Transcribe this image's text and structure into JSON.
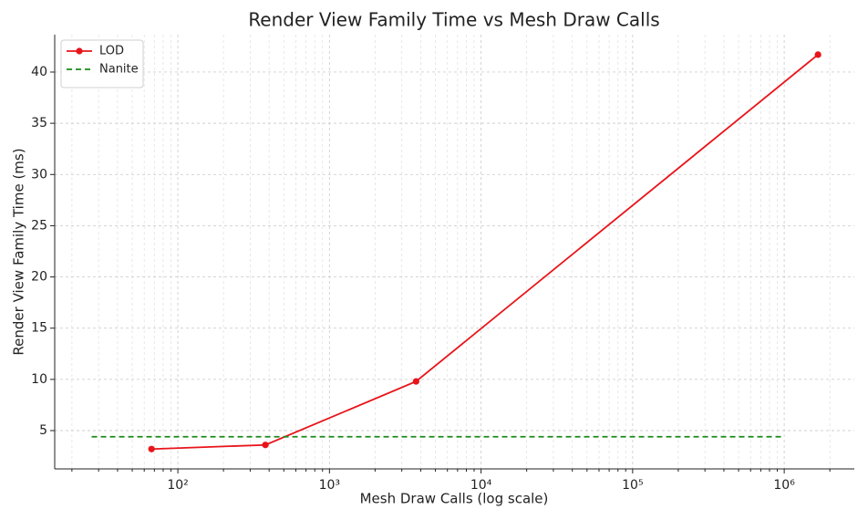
{
  "chart_data": {
    "type": "line",
    "title": "Render View Family Time vs Mesh Draw Calls",
    "xlabel": "Mesh Draw Calls (log scale)",
    "ylabel": "Render View Family Time (ms)",
    "xscale": "log",
    "xlim": [
      15.4,
      2900000
    ],
    "ylim": [
      1.26,
      43.65
    ],
    "xticks": [
      {
        "value": 100,
        "label": "10²"
      },
      {
        "value": 1000,
        "label": "10³"
      },
      {
        "value": 10000,
        "label": "10⁴"
      },
      {
        "value": 100000,
        "label": "10⁵"
      },
      {
        "value": 1000000,
        "label": "10⁶"
      }
    ],
    "xminorticks": [
      20,
      30,
      40,
      50,
      60,
      70,
      80,
      90,
      200,
      300,
      400,
      500,
      600,
      700,
      800,
      900,
      2000,
      3000,
      4000,
      5000,
      6000,
      7000,
      8000,
      9000,
      20000,
      30000,
      40000,
      50000,
      60000,
      70000,
      80000,
      90000,
      200000,
      300000,
      400000,
      500000,
      600000,
      700000,
      800000,
      900000,
      2000000
    ],
    "yticks": [
      5,
      10,
      15,
      20,
      25,
      30,
      35,
      40
    ],
    "grid": true,
    "legend": "upper left",
    "series": [
      {
        "name": "LOD",
        "color": "#e8141a",
        "style": "solid",
        "marker": "circle",
        "x": [
          67,
          378,
          3727,
          1670000
        ],
        "values": [
          3.2,
          3.6,
          9.8,
          41.7
        ]
      },
      {
        "name": "Nanite",
        "color": "#1a8a1a",
        "style": "dashed",
        "x": [
          27,
          1000000
        ],
        "values": [
          4.4,
          4.4
        ]
      }
    ]
  }
}
